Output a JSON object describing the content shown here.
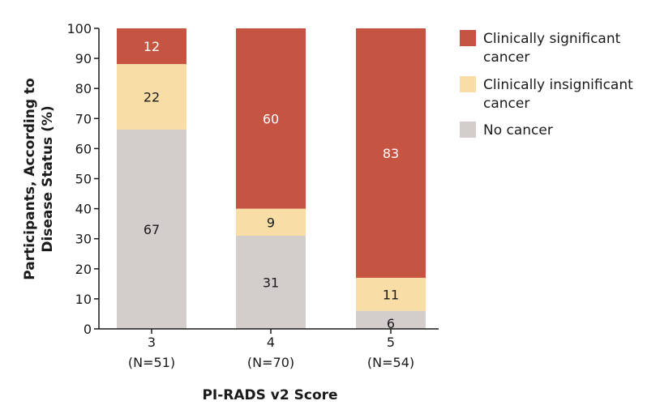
{
  "chart_data": {
    "type": "bar",
    "stacked": true,
    "categories": [
      "3",
      "4",
      "5"
    ],
    "category_sublabels": [
      "(N=51)",
      "(N=70)",
      "(N=54)"
    ],
    "series": [
      {
        "name": "No cancer",
        "values": [
          67,
          31,
          6
        ],
        "color": "#d3cdcb",
        "label_color": "#1a1a1a"
      },
      {
        "name": "Clinically insignificant cancer",
        "values": [
          22,
          9,
          11
        ],
        "color": "#f8dea6",
        "label_color": "#1a1a1a"
      },
      {
        "name": "Clinically significant cancer",
        "values": [
          12,
          60,
          83
        ],
        "color": "#c65442",
        "label_color": "#ffffff"
      }
    ],
    "legend_entries": [
      {
        "lines": [
          "Clinically significant",
          "cancer"
        ],
        "color": "#c65442"
      },
      {
        "lines": [
          "Clinically insignificant",
          "cancer"
        ],
        "color": "#f8dea6"
      },
      {
        "lines": [
          "No cancer"
        ],
        "color": "#d3cdcb"
      }
    ],
    "xlabel": "PI-RADS v2 Score",
    "ylabel_lines": [
      "Participants, According to",
      "Disease Status (%)"
    ],
    "ylim": [
      0,
      100
    ],
    "yticks": [
      0,
      10,
      20,
      30,
      40,
      50,
      60,
      70,
      80,
      90,
      100
    ],
    "grid": false,
    "legend_position": "right"
  }
}
